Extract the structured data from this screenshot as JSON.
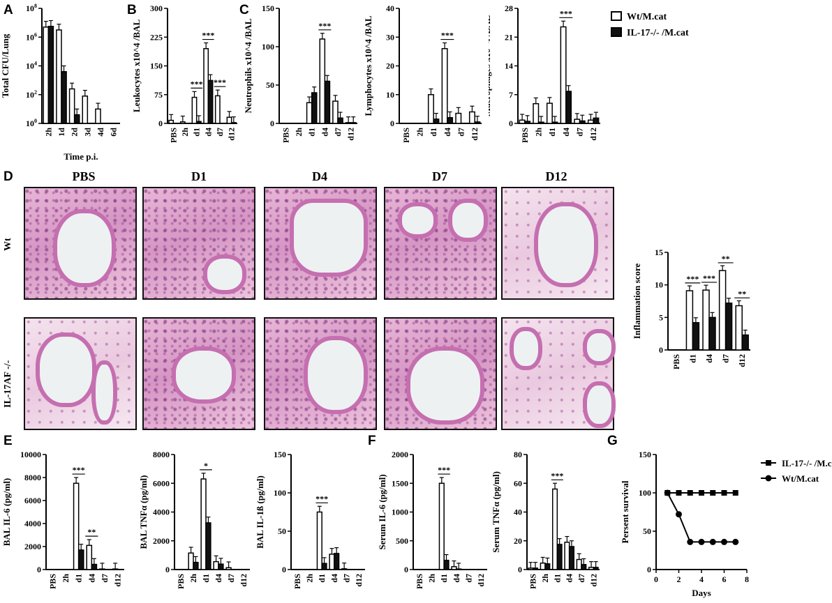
{
  "panel_labels": [
    "A",
    "B",
    "C",
    "D",
    "E",
    "F",
    "G"
  ],
  "legend": [
    {
      "name": "Wt/M.cat",
      "fill": "open"
    },
    {
      "name": "IL-17-/- /M.cat",
      "fill": "solid"
    }
  ],
  "histology": {
    "columns": [
      "PBS",
      "D1",
      "D4",
      "D7",
      "D12"
    ],
    "rows": [
      "Wt",
      "IL-17AF -/-"
    ]
  },
  "colors": {
    "open_bar": "#ffffff",
    "solid_bar": "#111111",
    "tissue": "#d596c4"
  },
  "chart_data": [
    {
      "id": "A",
      "type": "bar",
      "ylabel": "Total CFU/Lung",
      "xlabel": "Time p.i.",
      "scale": "log",
      "categories": [
        "2h",
        "1d",
        "2d",
        "3d",
        "4d",
        "6d"
      ],
      "yticks": [
        "10^0",
        "10^2",
        "10^4",
        "10^6",
        "10^8"
      ],
      "ylim": [
        0,
        8
      ],
      "series": [
        {
          "name": "Wt/M.cat",
          "values": [
            6.7,
            6.5,
            2.4,
            1.9,
            1.0,
            0
          ]
        },
        {
          "name": "IL-17-/- /M.cat",
          "values": [
            6.75,
            3.6,
            0.6,
            0,
            0,
            0
          ]
        }
      ],
      "sig": []
    },
    {
      "id": "B",
      "type": "bar",
      "ylabel": "Leukocytes x10^4 /BAL",
      "ylim": [
        0,
        300
      ],
      "yticks": [
        0,
        75,
        150,
        225,
        300
      ],
      "categories": [
        "PBS",
        "2h",
        "d1",
        "d4",
        "d7",
        "d12"
      ],
      "series": [
        {
          "name": "Wt/M.cat",
          "values": [
            8,
            4,
            68,
            195,
            72,
            16
          ]
        },
        {
          "name": "IL-17-/- /M.cat",
          "values": [
            0,
            0,
            5,
            112,
            0,
            2
          ]
        }
      ],
      "sig": [
        "",
        "",
        "***",
        "***",
        "***",
        ""
      ]
    },
    {
      "id": "C1",
      "type": "bar",
      "ylabel": "Neutrophils x10^4 /BAL",
      "ylim": [
        0,
        150
      ],
      "yticks": [
        0,
        50,
        100,
        150
      ],
      "categories": [
        "PBS",
        "2h",
        "d1",
        "d4",
        "d7",
        "d12"
      ],
      "series": [
        {
          "name": "Wt/M.cat",
          "values": [
            0,
            0,
            27,
            110,
            29,
            1
          ]
        },
        {
          "name": "IL-17-/- /M.cat",
          "values": [
            0,
            0,
            40,
            55,
            7,
            1
          ]
        }
      ],
      "sig": [
        "",
        "",
        "",
        "***",
        "",
        ""
      ]
    },
    {
      "id": "C2",
      "type": "bar",
      "ylabel": "Lymphocytes x10^4 /BAL",
      "ylim": [
        0,
        40
      ],
      "yticks": [
        0,
        10,
        20,
        30,
        40
      ],
      "categories": [
        "PBS",
        "2h",
        "d1",
        "d4",
        "d7",
        "d12"
      ],
      "series": [
        {
          "name": "Wt/M.cat",
          "values": [
            0,
            0,
            10,
            26,
            3.5,
            4
          ]
        },
        {
          "name": "IL-17-/- /M.cat",
          "values": [
            0,
            0,
            1.5,
            2,
            0,
            0.5
          ]
        }
      ],
      "sig": [
        "",
        "",
        "",
        "***",
        "",
        ""
      ]
    },
    {
      "id": "C3",
      "type": "bar",
      "ylabel": "Macrophages x10^4 /BAL",
      "ylim": [
        0,
        28
      ],
      "yticks": [
        0,
        7,
        14,
        21,
        28
      ],
      "categories": [
        "PBS",
        "2h",
        "d1",
        "d4",
        "d7",
        "d12"
      ],
      "series": [
        {
          "name": "Wt/M.cat",
          "values": [
            0.8,
            4.8,
            4.9,
            23.5,
            1,
            0.8
          ]
        },
        {
          "name": "IL-17-/- /M.cat",
          "values": [
            0.5,
            0.3,
            0.3,
            7.8,
            0.6,
            1.3
          ]
        }
      ],
      "sig": [
        "",
        "",
        "",
        "***",
        "",
        ""
      ]
    },
    {
      "id": "D",
      "type": "bar",
      "ylabel": "Inflammation score",
      "ylim": [
        0,
        15
      ],
      "yticks": [
        0,
        5,
        10,
        15
      ],
      "categories": [
        "PBS",
        "d1",
        "d4",
        "d7",
        "d12"
      ],
      "series": [
        {
          "name": "Wt/M.cat",
          "values": [
            0,
            9.1,
            9.2,
            12.2,
            6.8
          ]
        },
        {
          "name": "IL-17-/- /M.cat",
          "values": [
            0,
            4.2,
            5.0,
            7.2,
            2.3
          ]
        }
      ],
      "sig": [
        "",
        "***",
        "***",
        "**",
        "**"
      ]
    },
    {
      "id": "E1",
      "type": "bar",
      "ylabel": "BAL IL-6 (pg/ml)",
      "ylim": [
        0,
        10000
      ],
      "yticks": [
        0,
        2000,
        4000,
        6000,
        8000,
        10000
      ],
      "categories": [
        "PBS",
        "2h",
        "d1",
        "d4",
        "d7",
        "d12"
      ],
      "series": [
        {
          "name": "Wt/M.cat",
          "values": [
            0,
            0,
            7500,
            2100,
            50,
            50
          ]
        },
        {
          "name": "IL-17-/- /M.cat",
          "values": [
            0,
            0,
            1700,
            450,
            0,
            0
          ]
        }
      ],
      "sig": [
        "",
        "",
        "***",
        "**",
        "",
        ""
      ]
    },
    {
      "id": "E2",
      "type": "bar",
      "ylabel": "BAL TNFα (pg/ml)",
      "ylim": [
        0,
        8000
      ],
      "yticks": [
        0,
        2000,
        4000,
        6000,
        8000
      ],
      "categories": [
        "PBS",
        "2h",
        "d1",
        "d4",
        "d7",
        "d12"
      ],
      "series": [
        {
          "name": "Wt/M.cat",
          "values": [
            0,
            1150,
            6300,
            550,
            130,
            0
          ]
        },
        {
          "name": "IL-17-/- /M.cat",
          "values": [
            0,
            500,
            3250,
            380,
            0,
            0
          ]
        }
      ],
      "sig": [
        "",
        "",
        "*",
        "",
        "",
        ""
      ]
    },
    {
      "id": "E3",
      "type": "bar",
      "ylabel": "BAL IL-1ß (pg/ml)",
      "ylim": [
        0,
        150
      ],
      "yticks": [
        0,
        50,
        100,
        150
      ],
      "categories": [
        "PBS",
        "2h",
        "d1",
        "d4",
        "d7",
        "d12"
      ],
      "series": [
        {
          "name": "Wt/M.cat",
          "values": [
            0,
            0,
            75,
            20,
            1,
            0
          ]
        },
        {
          "name": "IL-17-/- /M.cat",
          "values": [
            0,
            0,
            8,
            21,
            0,
            0
          ]
        }
      ],
      "sig": [
        "",
        "",
        "***",
        "",
        "",
        ""
      ]
    },
    {
      "id": "F1",
      "type": "bar",
      "ylabel": "Serum IL-6 (pg/ml)",
      "ylim": [
        0,
        2000
      ],
      "yticks": [
        0,
        500,
        1000,
        1500,
        2000
      ],
      "categories": [
        "PBS",
        "2h",
        "d1",
        "d4",
        "d7",
        "d12"
      ],
      "series": [
        {
          "name": "Wt/M.cat",
          "values": [
            0,
            0,
            1500,
            50,
            0,
            0
          ]
        },
        {
          "name": "IL-17-/- /M.cat",
          "values": [
            0,
            0,
            160,
            10,
            0,
            0
          ]
        }
      ],
      "sig": [
        "",
        "",
        "***",
        "",
        "",
        ""
      ]
    },
    {
      "id": "F2",
      "type": "bar",
      "ylabel": "Serum TNFα (pg/ml)",
      "ylim": [
        0,
        80
      ],
      "yticks": [
        0,
        20,
        40,
        60,
        80
      ],
      "categories": [
        "PBS",
        "2h",
        "d1",
        "d4",
        "d7",
        "d12"
      ],
      "series": [
        {
          "name": "Wt/M.cat",
          "values": [
            1,
            4.5,
            56,
            19,
            7,
            1.5
          ]
        },
        {
          "name": "IL-17-/- /M.cat",
          "values": [
            1,
            4,
            17.5,
            16,
            3.5,
            1.5
          ]
        }
      ],
      "sig": [
        "",
        "",
        "***",
        "",
        "",
        ""
      ]
    },
    {
      "id": "G",
      "type": "line",
      "ylabel": "Persent survival",
      "xlabel": "Days",
      "ylim": [
        0,
        150
      ],
      "yticks": [
        0,
        50,
        100,
        150
      ],
      "xlim": [
        0,
        8
      ],
      "xticks": [
        0,
        2,
        4,
        6,
        8
      ],
      "series": [
        {
          "name": "IL-17-/- /M.cat",
          "marker": "square",
          "x": [
            1,
            2,
            3,
            4,
            5,
            6,
            7
          ],
          "y": [
            100,
            100,
            100,
            100,
            100,
            100,
            100
          ]
        },
        {
          "name": "Wt/M.cat",
          "marker": "circle",
          "x": [
            1,
            2,
            3,
            4,
            5,
            6,
            7
          ],
          "y": [
            100,
            72,
            36,
            36,
            36,
            36,
            36
          ]
        }
      ]
    }
  ]
}
